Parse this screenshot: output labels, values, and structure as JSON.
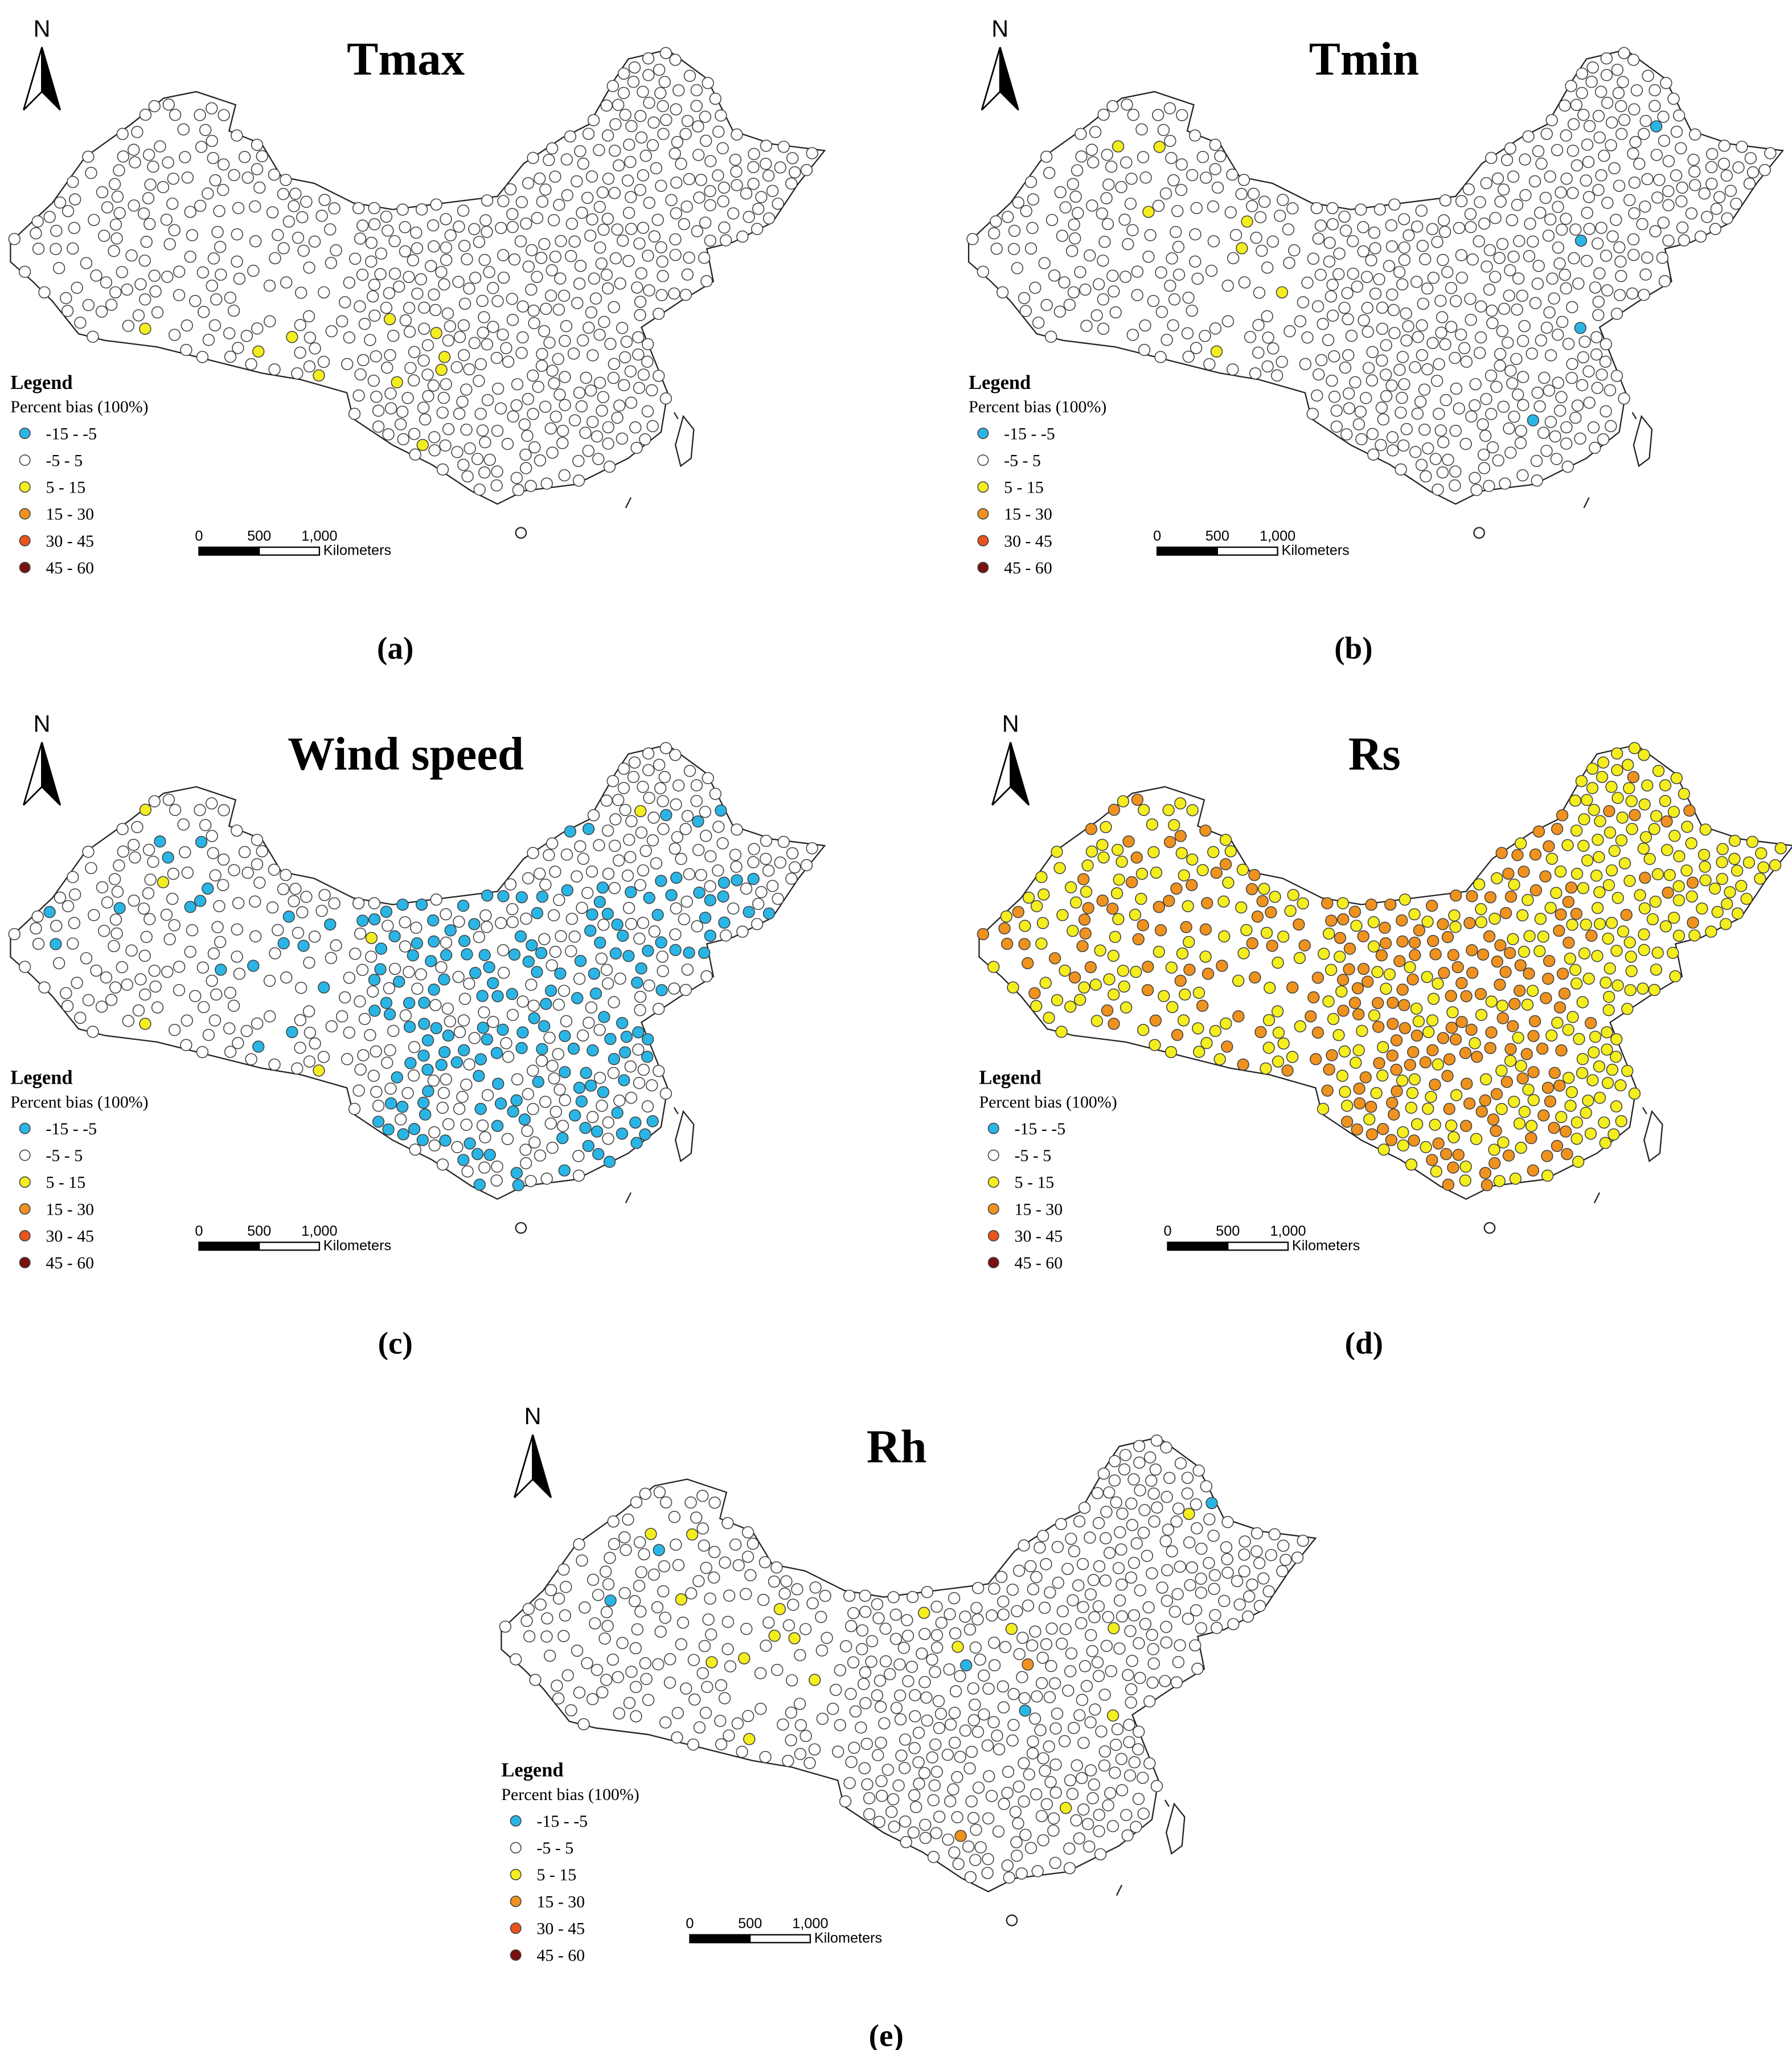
{
  "panels": [
    {
      "title": "Tmax",
      "label": "(a)"
    },
    {
      "title": "Tmin",
      "label": "(b)"
    },
    {
      "title": "Wind speed",
      "label": "(c)"
    },
    {
      "title": "Rs",
      "label": "(d)"
    },
    {
      "title": "Rh",
      "label": "(e)"
    }
  ],
  "north": "N",
  "legend": {
    "title": "Legend",
    "subtitle": "Percent bias (100%)",
    "classes": [
      {
        "label": "-15 - -5",
        "color": "#29b6e6"
      },
      {
        "label": "-5 - 5",
        "color": "#ffffff"
      },
      {
        "label": "5 - 15",
        "color": "#f5ee1f"
      },
      {
        "label": "15 - 30",
        "color": "#f0921e"
      },
      {
        "label": "30 - 45",
        "color": "#e8541e"
      },
      {
        "label": "45 - 60",
        "color": "#7a1010"
      }
    ]
  },
  "scale_bar": {
    "labels": [
      "0",
      "500",
      "1,000"
    ],
    "unit": "Kilometers"
  }
}
